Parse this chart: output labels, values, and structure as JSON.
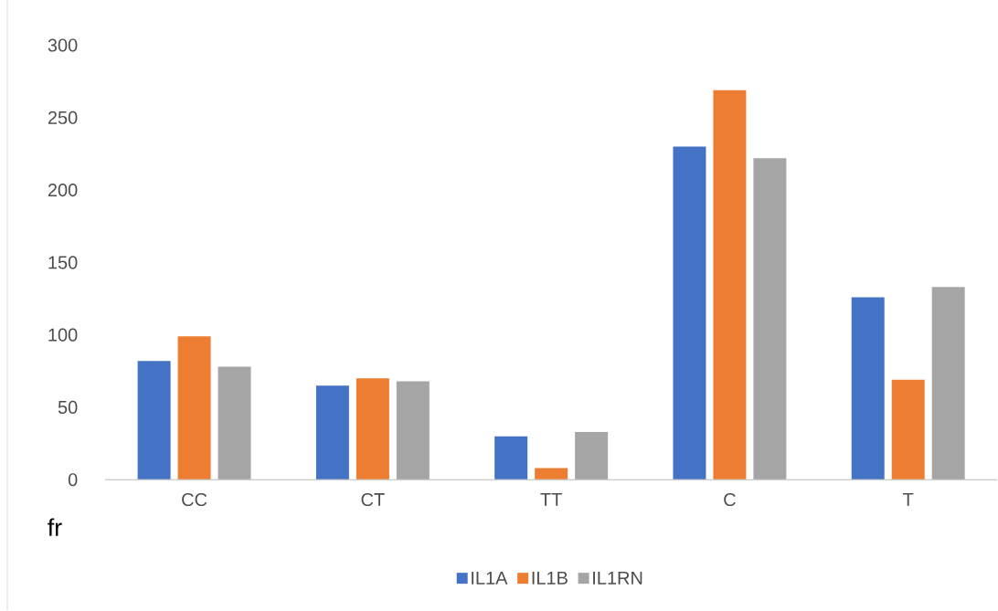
{
  "chart_data": {
    "type": "bar",
    "xlabel": "fr",
    "categories": [
      "CC",
      "CT",
      "TT",
      "C",
      "T"
    ],
    "series": [
      {
        "name": "IL1A",
        "color": "#4472c4",
        "values": [
          82,
          65,
          30,
          230,
          126
        ]
      },
      {
        "name": "IL1B",
        "color": "#ed7d31",
        "values": [
          99,
          70,
          8,
          269,
          69
        ]
      },
      {
        "name": "IL1RN",
        "color": "#a5a5a5",
        "values": [
          78,
          68,
          33,
          222,
          133
        ]
      }
    ],
    "ylim": [
      0,
      300
    ],
    "yticks": [
      0,
      50,
      100,
      150,
      200,
      250,
      300
    ],
    "grid": false,
    "legend": "bottom"
  }
}
